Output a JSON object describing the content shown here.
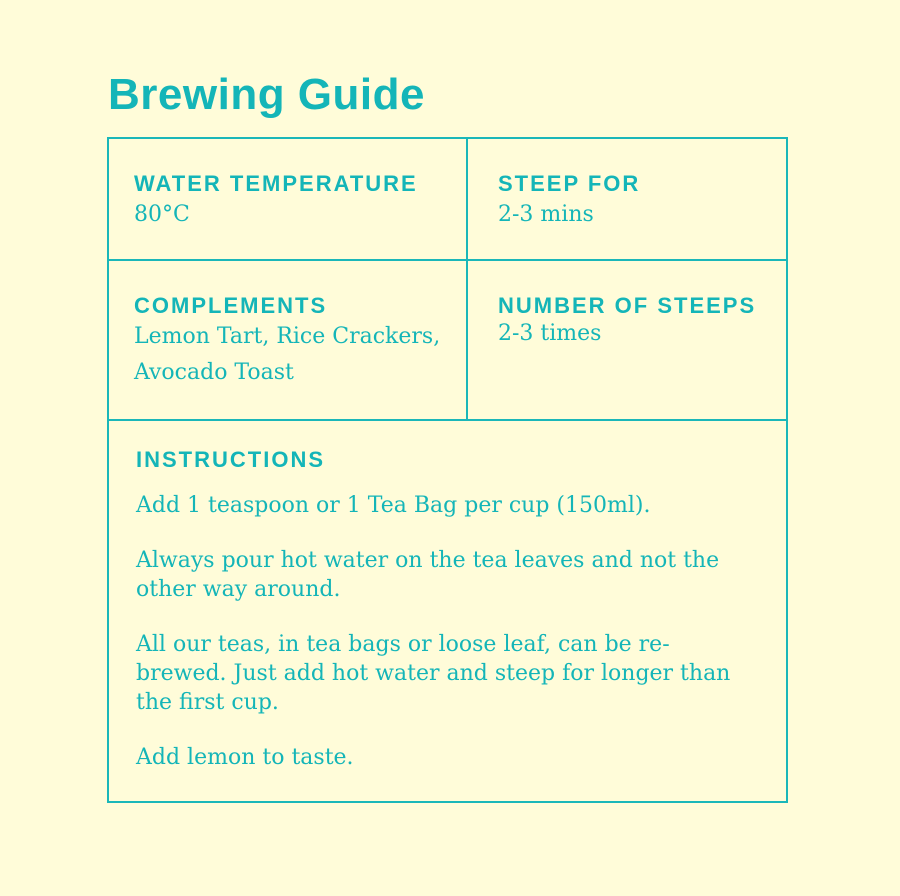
{
  "title": "Brewing Guide",
  "cells": {
    "water_temperature": {
      "label": "WATER TEMPERATURE",
      "value": "80°C"
    },
    "steep_for": {
      "label": "STEEP FOR",
      "value": "2-3 mins"
    },
    "complements": {
      "label": "COMPLEMENTS",
      "value": "Lemon Tart, Rice Crackers, Avocado Toast"
    },
    "number_of_steeps": {
      "label": "NUMBER OF STEEPS",
      "value": "2-3 times"
    }
  },
  "instructions": {
    "label": "INSTRUCTIONS",
    "paragraphs": [
      "Add 1 teaspoon or 1 Tea Bag per cup (150ml).",
      "Always pour hot water on the tea leaves and not the other way around.",
      "All our teas, in tea bags or loose leaf, can be re-brewed. Just add hot water and steep for longer than the first cup.",
      "Add lemon to taste."
    ]
  },
  "colors": {
    "background": "#fffcd9",
    "accent": "#14b5b8"
  }
}
